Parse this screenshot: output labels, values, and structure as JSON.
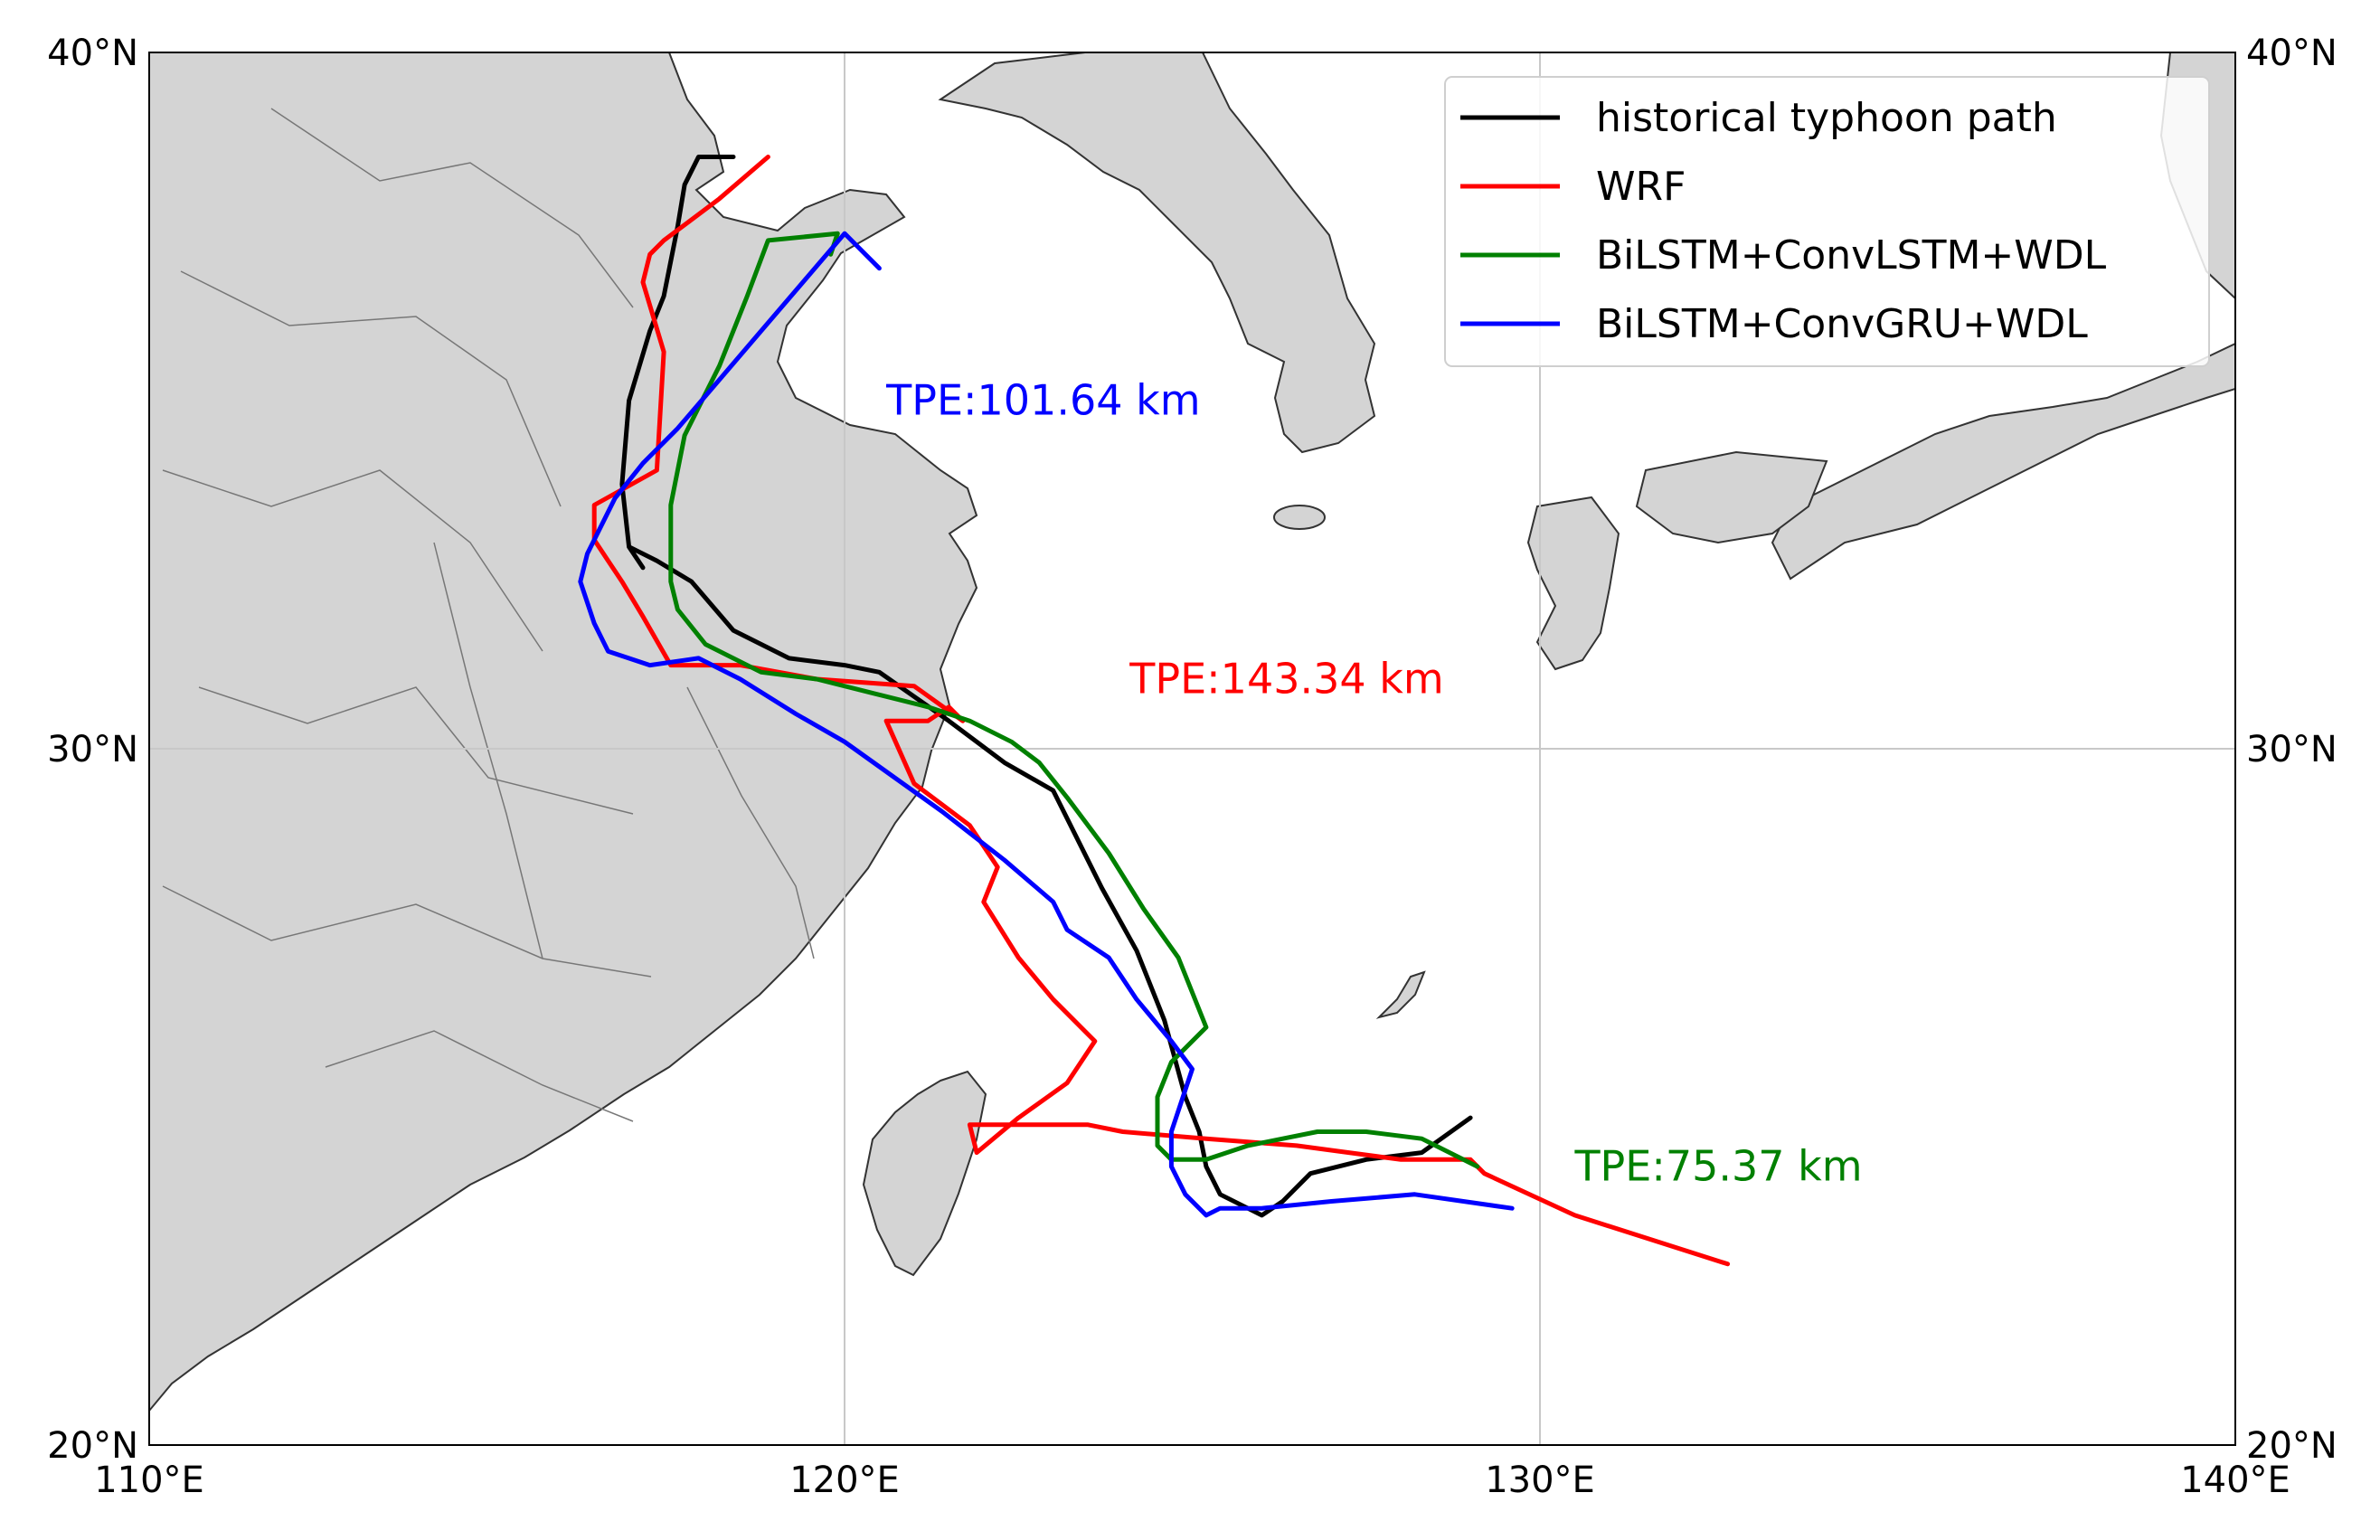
{
  "map": {
    "lon_range": [
      110,
      140
    ],
    "lat_range": [
      20,
      40
    ],
    "gridlines": true,
    "land_color": "#d4d4d4",
    "ocean_color": "#ffffff",
    "x_ticks": [
      {
        "value": 110,
        "label": "110°E"
      },
      {
        "value": 120,
        "label": "120°E"
      },
      {
        "value": 130,
        "label": "130°E"
      },
      {
        "value": 140,
        "label": "140°E"
      }
    ],
    "y_ticks": [
      {
        "value": 20,
        "label": "20°N"
      },
      {
        "value": 30,
        "label": "30°N"
      },
      {
        "value": 40,
        "label": "40°N"
      }
    ]
  },
  "legend": {
    "placement": "top-right",
    "items": [
      {
        "label": "historical typhoon path",
        "color": "#000000"
      },
      {
        "label": "WRF",
        "color": "#ff0000"
      },
      {
        "label": "BiLSTM+ConvLSTM+WDL",
        "color": "#008000"
      },
      {
        "label": "BiLSTM+ConvGRU+WDL",
        "color": "#0000ff"
      }
    ]
  },
  "annotations": [
    {
      "text": "TPE:101.64 km",
      "color": "#0000ff",
      "lon": 120.6,
      "lat": 34.8
    },
    {
      "text": "TPE:143.34 km",
      "color": "#ff0000",
      "lon": 124.1,
      "lat": 30.8
    },
    {
      "text": "TPE:75.37 km",
      "color": "#008000",
      "lon": 130.5,
      "lat": 23.8
    }
  ],
  "chart_data": {
    "type": "line",
    "xlabel": "",
    "ylabel": "",
    "xlim": [
      110,
      140
    ],
    "ylim": [
      20,
      40
    ],
    "series": [
      {
        "name": "historical typhoon path",
        "color": "#000000",
        "x": [
          129.0,
          128.3,
          127.5,
          126.7,
          126.3,
          126.0,
          125.8,
          125.4,
          125.2,
          125.1,
          124.9,
          124.6,
          124.2,
          123.7,
          123.0,
          122.3,
          121.5,
          120.5,
          120.0,
          119.2,
          118.4,
          117.8,
          117.3,
          116.9,
          117.1,
          116.9,
          116.8,
          116.9,
          117.2,
          117.4,
          117.6,
          117.7,
          117.9,
          118.4
        ],
        "y": [
          24.7,
          24.2,
          24.1,
          23.9,
          23.5,
          23.3,
          23.4,
          23.6,
          24.0,
          24.5,
          25.0,
          26.1,
          27.1,
          28.0,
          29.4,
          29.8,
          30.4,
          31.1,
          31.2,
          31.3,
          31.7,
          32.4,
          32.7,
          32.9,
          32.6,
          32.9,
          33.8,
          35.0,
          36.0,
          36.5,
          37.5,
          38.1,
          38.5,
          38.5
        ]
      },
      {
        "name": "WRF",
        "color": "#ff0000",
        "x": [
          132.7,
          130.5,
          129.2,
          129.0,
          128.0,
          126.5,
          125.2,
          124.0,
          123.5,
          123.0,
          122.5,
          122.3,
          121.8,
          121.9,
          122.5,
          123.2,
          123.6,
          123.0,
          122.5,
          122.0,
          122.2,
          121.8,
          121.0,
          120.6,
          121.2,
          121.5,
          121.7,
          121.0,
          119.6,
          118.5,
          117.5,
          117.1,
          116.8,
          116.6,
          116.4,
          116.4,
          117.3,
          117.4,
          117.1,
          117.2,
          117.4,
          118.2,
          118.9
        ],
        "y": [
          22.6,
          23.3,
          23.9,
          24.1,
          24.1,
          24.3,
          24.4,
          24.5,
          24.6,
          24.6,
          24.6,
          24.6,
          24.6,
          24.2,
          24.7,
          25.2,
          25.8,
          26.4,
          27.0,
          27.8,
          28.3,
          28.9,
          29.5,
          30.4,
          30.4,
          30.6,
          30.4,
          30.9,
          31.0,
          31.2,
          31.2,
          31.9,
          32.4,
          32.7,
          33.0,
          33.5,
          34.0,
          35.7,
          36.7,
          37.1,
          37.3,
          37.9,
          38.5
        ]
      },
      {
        "name": "BiLSTM+ConvLSTM+WDL",
        "color": "#008000",
        "x": [
          129.1,
          128.3,
          127.5,
          126.8,
          125.8,
          125.2,
          124.7,
          124.5,
          124.5,
          124.7,
          125.2,
          124.8,
          124.3,
          123.8,
          123.2,
          122.8,
          122.4,
          121.8,
          121.2,
          120.4,
          119.6,
          118.8,
          118.0,
          117.6,
          117.5,
          117.5,
          117.7,
          118.2,
          118.6,
          118.9,
          119.9,
          119.8
        ],
        "y": [
          24.0,
          24.4,
          24.5,
          24.5,
          24.3,
          24.1,
          24.1,
          24.3,
          25.0,
          25.5,
          26.0,
          27.0,
          27.7,
          28.5,
          29.3,
          29.8,
          30.1,
          30.4,
          30.6,
          30.8,
          31.0,
          31.1,
          31.5,
          32.0,
          32.4,
          33.5,
          34.5,
          35.5,
          36.5,
          37.3,
          37.4,
          37.1
        ]
      },
      {
        "name": "BiLSTM+ConvGRU+WDL",
        "color": "#0000ff",
        "x": [
          129.6,
          128.2,
          127.0,
          126.0,
          125.4,
          125.2,
          124.9,
          124.7,
          124.7,
          125.0,
          124.7,
          124.2,
          123.8,
          123.2,
          123.0,
          122.3,
          121.4,
          120.7,
          120.0,
          119.3,
          118.5,
          117.9,
          117.2,
          116.6,
          116.4,
          116.2,
          116.3,
          116.7,
          117.1,
          117.6,
          118.2,
          118.8,
          119.4,
          120.0,
          120.2,
          120.5
        ],
        "y": [
          23.4,
          23.6,
          23.5,
          23.4,
          23.4,
          23.3,
          23.6,
          24.0,
          24.5,
          25.4,
          25.8,
          26.4,
          27.0,
          27.4,
          27.8,
          28.4,
          29.1,
          29.6,
          30.1,
          30.5,
          31.0,
          31.3,
          31.2,
          31.4,
          31.8,
          32.4,
          32.8,
          33.6,
          34.1,
          34.6,
          35.3,
          36.0,
          36.7,
          37.4,
          37.2,
          36.9
        ]
      }
    ]
  }
}
